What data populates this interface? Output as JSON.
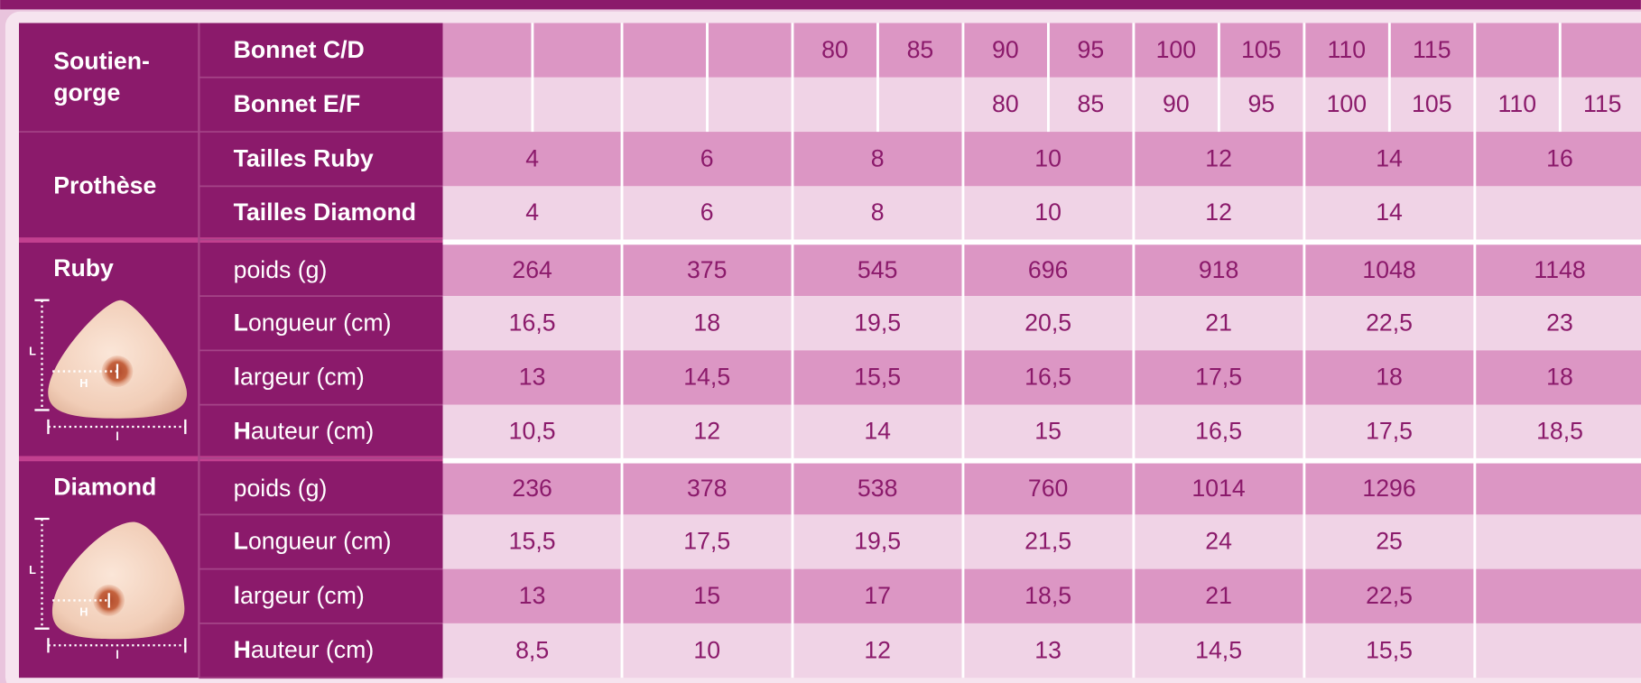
{
  "brassiere": {
    "label_lines": [
      "Soutien-",
      "gorge"
    ],
    "rows": [
      {
        "label": "Bonnet C/D",
        "values": [
          null,
          null,
          null,
          null,
          "80",
          "85",
          "90",
          "95",
          "100",
          "105",
          "110",
          "115",
          null,
          null
        ]
      },
      {
        "label": "Bonnet E/F",
        "values": [
          null,
          null,
          null,
          null,
          null,
          null,
          "80",
          "85",
          "90",
          "95",
          "100",
          "105",
          "110",
          "115"
        ]
      }
    ]
  },
  "prosthesis": {
    "label": "Prothèse",
    "rows": [
      {
        "label": "Tailles Ruby",
        "values": [
          "4",
          "6",
          "8",
          "10",
          "12",
          "14",
          "16"
        ]
      },
      {
        "label": "Tailles Diamond",
        "values": [
          "4",
          "6",
          "8",
          "10",
          "12",
          "14",
          null
        ]
      }
    ]
  },
  "products": [
    {
      "name": "Ruby",
      "diagram_labels": [
        "L",
        "H",
        "l"
      ],
      "rows": [
        {
          "label": "poids (g)",
          "bold_initial": false,
          "values": [
            "264",
            "375",
            "545",
            "696",
            "918",
            "1048",
            "1148"
          ]
        },
        {
          "label": "Longueur (cm)",
          "bold_initial": true,
          "values": [
            "16,5",
            "18",
            "19,5",
            "20,5",
            "21",
            "22,5",
            "23"
          ]
        },
        {
          "label": "largeur (cm)",
          "bold_initial": true,
          "values": [
            "13",
            "14,5",
            "15,5",
            "16,5",
            "17,5",
            "18",
            "18"
          ]
        },
        {
          "label": "Hauteur (cm)",
          "bold_initial": true,
          "values": [
            "10,5",
            "12",
            "14",
            "15",
            "16,5",
            "17,5",
            "18,5"
          ]
        }
      ]
    },
    {
      "name": "Diamond",
      "diagram_labels": [
        "L",
        "H",
        "l"
      ],
      "rows": [
        {
          "label": "poids (g)",
          "bold_initial": false,
          "values": [
            "236",
            "378",
            "538",
            "760",
            "1014",
            "1296",
            null
          ]
        },
        {
          "label": "Longueur (cm)",
          "bold_initial": true,
          "values": [
            "15,5",
            "17,5",
            "19,5",
            "21,5",
            "24",
            "25",
            null
          ]
        },
        {
          "label": "largeur (cm)",
          "bold_initial": true,
          "values": [
            "13",
            "15",
            "17",
            "18,5",
            "21",
            "22,5",
            null
          ]
        },
        {
          "label": "Hauteur (cm)",
          "bold_initial": true,
          "values": [
            "8,5",
            "10",
            "12",
            "13",
            "14,5",
            "15,5",
            null
          ]
        }
      ]
    }
  ]
}
